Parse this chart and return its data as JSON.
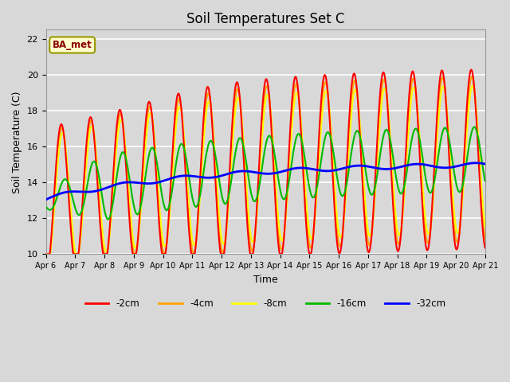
{
  "title": "Soil Temperatures Set C",
  "xlabel": "Time",
  "ylabel": "Soil Temperature (C)",
  "ylim": [
    10,
    22.5
  ],
  "xlim": [
    0,
    15
  ],
  "tick_labels": [
    "Apr 6",
    "Apr 7",
    "Apr 8",
    "Apr 9",
    "Apr 10",
    "Apr 11",
    "Apr 12",
    "Apr 13",
    "Apr 14",
    "Apr 15",
    "Apr 16",
    "Apr 17",
    "Apr 18",
    "Apr 19",
    "Apr 20",
    "Apr 21"
  ],
  "colors": {
    "-2cm": "#ff0000",
    "-4cm": "#ffa500",
    "-8cm": "#ffff00",
    "-16cm": "#00bb00",
    "-32cm": "#0000ff"
  },
  "bg_color": "#d8d8d8",
  "fig_color": "#d8d8d8"
}
